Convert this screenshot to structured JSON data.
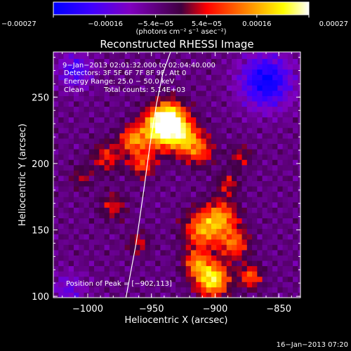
{
  "chart_data": {
    "type": "heatmap",
    "title": "Reconstructed RHESSI Image",
    "xlabel": "Heliocentric X (arcsec)",
    "ylabel": "Heliocentric Y (arcsec)",
    "xlim": [
      -1027,
      -833
    ],
    "ylim": [
      99,
      284
    ],
    "xticks": [
      -1000,
      -950,
      -900,
      -850
    ],
    "yticks": [
      100,
      150,
      200,
      250
    ],
    "xtick_labels": [
      "−1000",
      "−950",
      "−900",
      "−850"
    ],
    "ytick_labels": [
      "100",
      "150",
      "200",
      "250"
    ],
    "colorbar": {
      "range": [
        -0.00027,
        0.00027
      ],
      "tick_labels": [
        "−0.00027",
        "−0.00016",
        "−5.4e−05",
        "5.4e−05",
        "0.00016",
        "0.00027"
      ],
      "tick_values": [
        -0.00027,
        -0.00016,
        -5.4e-05,
        5.4e-05,
        0.00016,
        0.00027
      ],
      "unit_label": "(photons cm⁻² s⁻¹ asec⁻²)",
      "colors": [
        "#0000ff",
        "#3f00ff",
        "#8000c0",
        "#400040",
        "#ff0000",
        "#ff8000",
        "#ffff00",
        "#ffffff"
      ]
    },
    "header_lines": [
      "9−Jan−2013 02:01:32.000 to 02:04:40.000",
      "Detectors: 3F 5F 6F 7F 8F 9F, Att 0",
      "Energy Range: 25.0 − 50.0 keV",
      "Clean",
      "Total counts: 5.14E+03"
    ],
    "peak_label": "Position of Peak = [−902,113]",
    "peak": [
      -902,
      113
    ],
    "sources": [
      {
        "x": -936,
        "y": 234,
        "sigma": 9,
        "amp": 1.0
      },
      {
        "x": -945,
        "y": 225,
        "sigma": 10,
        "amp": 0.8
      },
      {
        "x": -925,
        "y": 220,
        "sigma": 9,
        "amp": 0.7
      },
      {
        "x": -965,
        "y": 218,
        "sigma": 7,
        "amp": 0.6
      },
      {
        "x": -957,
        "y": 200,
        "sigma": 7,
        "amp": 0.5
      },
      {
        "x": -912,
        "y": 210,
        "sigma": 8,
        "amp": 0.45
      },
      {
        "x": -985,
        "y": 205,
        "sigma": 8,
        "amp": 0.4
      },
      {
        "x": -895,
        "y": 160,
        "sigma": 9,
        "amp": 0.6
      },
      {
        "x": -910,
        "y": 150,
        "sigma": 10,
        "amp": 0.65
      },
      {
        "x": -885,
        "y": 140,
        "sigma": 8,
        "amp": 0.55
      },
      {
        "x": -902,
        "y": 113,
        "sigma": 9,
        "amp": 0.95
      },
      {
        "x": -915,
        "y": 125,
        "sigma": 7,
        "amp": 0.55
      },
      {
        "x": -872,
        "y": 115,
        "sigma": 6,
        "amp": 0.55
      },
      {
        "x": -890,
        "y": 185,
        "sigma": 6,
        "amp": 0.35
      },
      {
        "x": -980,
        "y": 168,
        "sigma": 7,
        "amp": 0.35
      },
      {
        "x": -960,
        "y": 140,
        "sigma": 6,
        "amp": 0.3
      },
      {
        "x": -880,
        "y": 205,
        "sigma": 6,
        "amp": 0.3
      },
      {
        "x": -1005,
        "y": 190,
        "sigma": 6,
        "amp": 0.25
      }
    ],
    "negative_regions": [
      {
        "x": -860,
        "y": 262,
        "sigma": 14,
        "amp": -0.7
      },
      {
        "x": -1010,
        "y": 270,
        "sigma": 9,
        "amp": -0.45
      },
      {
        "x": -1015,
        "y": 105,
        "sigma": 9,
        "amp": -0.3
      }
    ],
    "limb_curve": {
      "x": [
        -970,
        -962,
        -956,
        -951,
        -946,
        -941,
        -935
      ],
      "y": [
        99,
        140,
        180,
        215,
        245,
        268,
        284
      ]
    }
  },
  "footer": {
    "timestamp": "16−Jan−2013 07:20"
  }
}
